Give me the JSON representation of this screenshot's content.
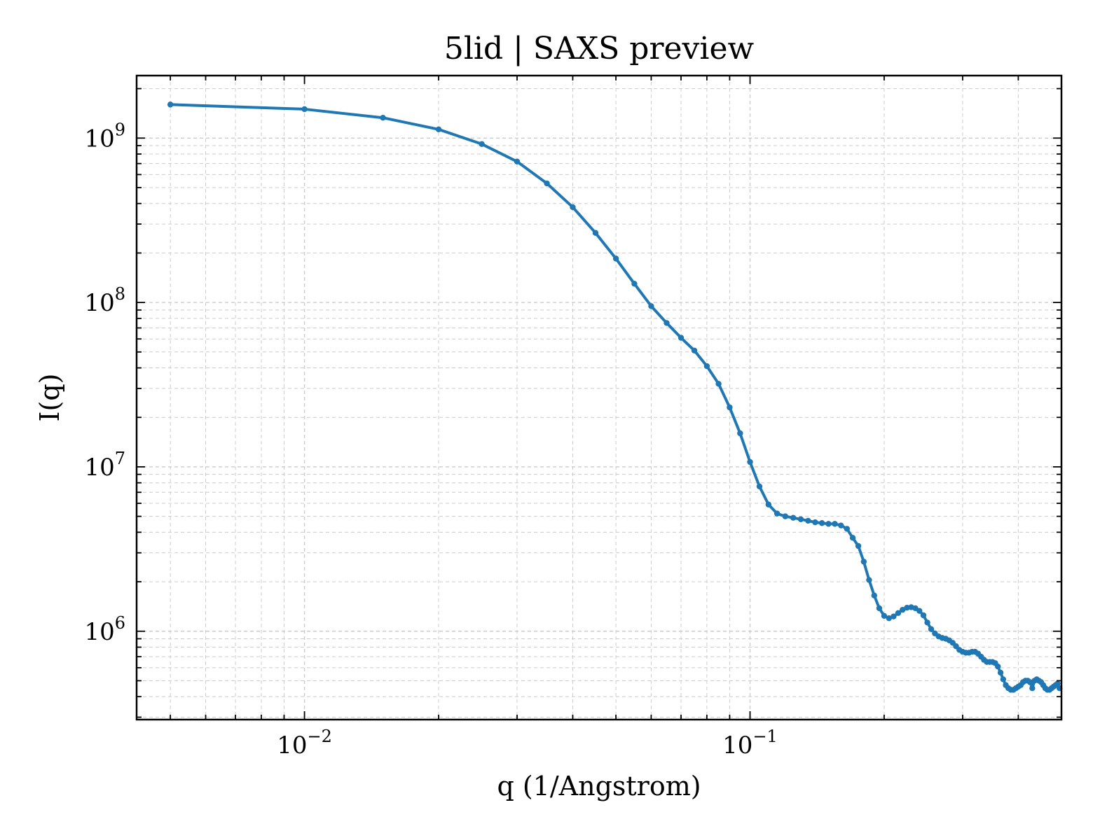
{
  "chart_data": {
    "type": "line",
    "title": "5lid | SAXS preview",
    "xlabel": "q (1/Angstrom)",
    "ylabel": "I(q)",
    "xscale": "log",
    "yscale": "log",
    "xlim": [
      0.0042,
      0.5
    ],
    "ylim": [
      290000,
      2400000000
    ],
    "grid": true,
    "legend": "none",
    "x_ticks": [
      {
        "value": 0.01,
        "base": "10",
        "exp": "−2"
      },
      {
        "value": 0.1,
        "base": "10",
        "exp": "−1"
      }
    ],
    "y_ticks": [
      {
        "value": 1000000,
        "base": "10",
        "exp": "6"
      },
      {
        "value": 10000000,
        "base": "10",
        "exp": "7"
      },
      {
        "value": 100000000,
        "base": "10",
        "exp": "8"
      },
      {
        "value": 1000000000,
        "base": "10",
        "exp": "9"
      }
    ],
    "series": [
      {
        "color": "#1f77b4",
        "x": [
          0.005,
          0.01,
          0.015,
          0.02,
          0.025,
          0.03,
          0.035,
          0.04,
          0.045,
          0.05,
          0.055,
          0.06,
          0.065,
          0.07,
          0.075,
          0.08,
          0.085,
          0.09,
          0.095,
          0.1,
          0.105,
          0.11,
          0.115,
          0.12,
          0.125,
          0.13,
          0.135,
          0.14,
          0.145,
          0.15,
          0.155,
          0.16,
          0.165,
          0.17,
          0.175,
          0.18,
          0.185,
          0.19,
          0.195,
          0.2,
          0.205,
          0.21,
          0.215,
          0.22,
          0.225,
          0.23,
          0.235,
          0.24,
          0.245,
          0.25,
          0.255,
          0.26,
          0.265,
          0.27,
          0.275,
          0.28,
          0.285,
          0.29,
          0.295,
          0.3,
          0.305,
          0.31,
          0.315,
          0.32,
          0.325,
          0.33,
          0.335,
          0.34,
          0.345,
          0.35,
          0.355,
          0.36,
          0.365,
          0.37,
          0.375,
          0.38,
          0.385,
          0.39,
          0.395,
          0.4,
          0.405,
          0.41,
          0.415,
          0.42,
          0.425,
          0.43,
          0.435,
          0.44,
          0.445,
          0.45,
          0.455,
          0.46,
          0.465,
          0.47,
          0.475,
          0.48,
          0.485,
          0.49,
          0.495
        ],
        "y": [
          1600000000,
          1500000000,
          1330000000,
          1130000000,
          920000000,
          720000000,
          530000000,
          380000000,
          265000000,
          185000000,
          130000000,
          95000000,
          75000000,
          61000000,
          51000000,
          41000000,
          32000000,
          23000000,
          16000000,
          10700000,
          7600000,
          5900000,
          5200000,
          5000000,
          4900000,
          4800000,
          4700000,
          4600000,
          4550000,
          4500000,
          4500000,
          4400000,
          4200000,
          3700000,
          3300000,
          2650000,
          2050000,
          1650000,
          1380000,
          1240000,
          1200000,
          1230000,
          1290000,
          1350000,
          1390000,
          1400000,
          1380000,
          1330000,
          1250000,
          1130000,
          1030000,
          970000,
          930000,
          910000,
          900000,
          880000,
          850000,
          810000,
          770000,
          750000,
          740000,
          740000,
          750000,
          750000,
          730000,
          700000,
          670000,
          650000,
          650000,
          650000,
          640000,
          610000,
          560000,
          510000,
          470000,
          450000,
          440000,
          440000,
          450000,
          460000,
          470000,
          490000,
          500000,
          500000,
          490000,
          450000,
          500000,
          510000,
          500000,
          490000,
          470000,
          450000,
          440000,
          440000,
          450000,
          460000,
          470000,
          480000,
          450000
        ]
      }
    ]
  }
}
